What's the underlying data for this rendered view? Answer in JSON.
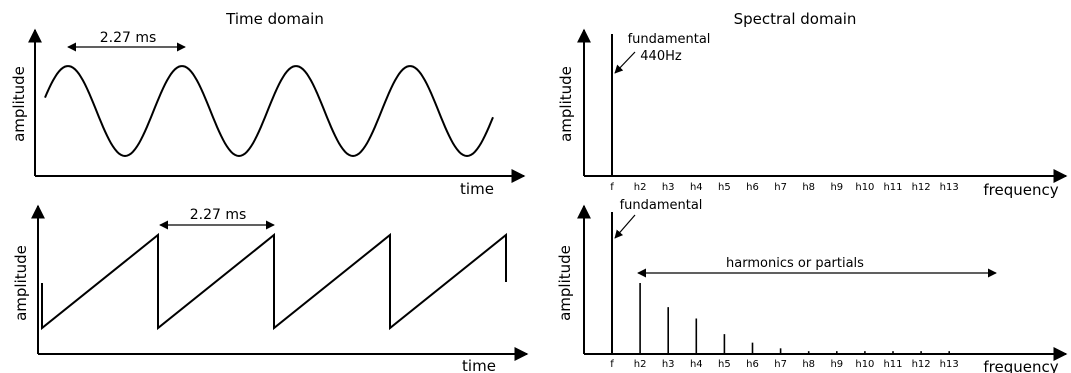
{
  "headings": {
    "time_domain": "Time domain",
    "spectral_domain": "Spectral domain"
  },
  "axes": {
    "amplitude": "amplitude",
    "time": "time",
    "frequency": "frequency"
  },
  "period_label": "2.27 ms",
  "annotations": {
    "fundamental": "fundamental",
    "frequency_440": "440Hz",
    "harmonics": "harmonics or partials"
  },
  "freq_ticks": [
    "f",
    "h2",
    "h3",
    "h4",
    "h5",
    "h6",
    "h7",
    "h8",
    "h9",
    "h10",
    "h11",
    "h12",
    "h13"
  ],
  "chart_data": [
    {
      "type": "line",
      "title": "Time domain",
      "xlabel": "time",
      "ylabel": "amplitude",
      "waveform": "sine",
      "period_label": "2.27 ms",
      "cycles": 4
    },
    {
      "type": "bar",
      "title": "Spectral domain",
      "xlabel": "frequency",
      "ylabel": "amplitude",
      "categories": [
        "f",
        "h2",
        "h3",
        "h4",
        "h5",
        "h6",
        "h7",
        "h8",
        "h9",
        "h10",
        "h11",
        "h12",
        "h13"
      ],
      "values": [
        1,
        0,
        0,
        0,
        0,
        0,
        0,
        0,
        0,
        0,
        0,
        0,
        0
      ],
      "annotations": [
        "fundamental",
        "440Hz"
      ]
    },
    {
      "type": "line",
      "xlabel": "time",
      "ylabel": "amplitude",
      "waveform": "sawtooth",
      "period_label": "2.27 ms",
      "cycles": 4
    },
    {
      "type": "bar",
      "xlabel": "frequency",
      "ylabel": "amplitude",
      "categories": [
        "f",
        "h2",
        "h3",
        "h4",
        "h5",
        "h6",
        "h7",
        "h8",
        "h9",
        "h10",
        "h11",
        "h12",
        "h13"
      ],
      "values": [
        1,
        0.5,
        0.33,
        0.25,
        0.14,
        0.08,
        0.04,
        0.02,
        0.02,
        0.02,
        0.02,
        0.02,
        0.02
      ],
      "annotations": [
        "fundamental",
        "harmonics or partials"
      ]
    }
  ]
}
